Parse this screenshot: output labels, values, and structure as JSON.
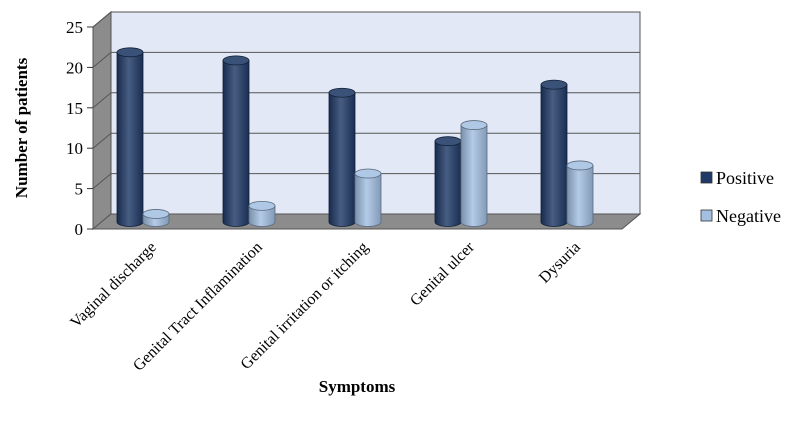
{
  "chart_data": {
    "type": "bar",
    "title": "",
    "xlabel": "Symptoms",
    "ylabel": "Number of patients",
    "ylim": [
      0,
      25
    ],
    "yticks": [
      0,
      5,
      10,
      15,
      20,
      25
    ],
    "grid": true,
    "legend_position": "right",
    "categories": [
      "Vaginal discharge",
      "Genital Tract Inflamination",
      "Genital irritation or itching",
      "Genital ulcer",
      "Dysuria"
    ],
    "series": [
      {
        "name": "Positive",
        "color": "#1f3a66",
        "values": [
          21,
          20,
          16,
          10,
          17
        ]
      },
      {
        "name": "Negative",
        "color": "#a3c0e3",
        "values": [
          1,
          2,
          6,
          12,
          7
        ]
      }
    ]
  }
}
